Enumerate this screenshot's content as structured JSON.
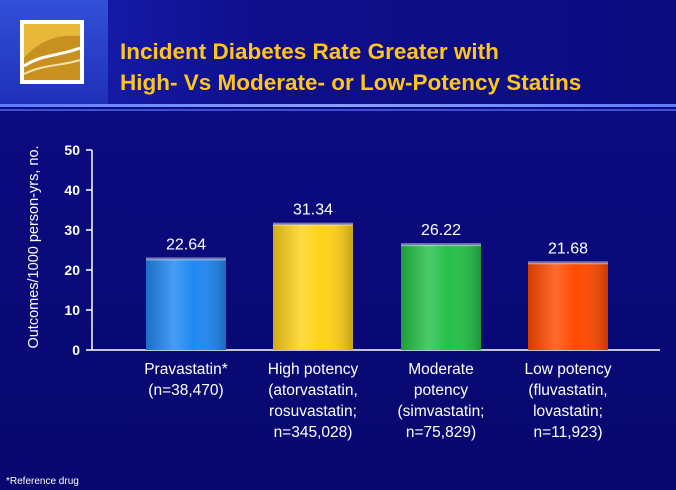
{
  "title": {
    "line1": "Incident Diabetes Rate Greater with",
    "line2": "High- Vs Moderate- or Low-Potency Statins"
  },
  "footnote": "*Reference drug",
  "colors": {
    "background": "#0a0a78",
    "title": "#ffc61a",
    "axis": "#ffffff"
  },
  "chart_data": {
    "type": "bar",
    "title": "",
    "xlabel": "",
    "ylabel": "Outcomes/1000 person-yrs, no.",
    "ylim": [
      0,
      50
    ],
    "yticks": [
      0,
      10,
      20,
      30,
      40,
      50
    ],
    "grid": false,
    "categories": [
      [
        "Pravastatin*",
        "(n=38,470)"
      ],
      [
        "High potency",
        "(atorvastatin,",
        "rosuvastatin;",
        "n=345,028)"
      ],
      [
        "Moderate",
        "potency",
        "(simvastatin;",
        "n=75,829)"
      ],
      [
        "Low potency",
        "(fluvastatin,",
        "lovastatin;",
        "n=11,923)"
      ]
    ],
    "values": [
      22.64,
      31.34,
      26.22,
      21.68
    ],
    "value_labels": [
      "22.64",
      "31.34",
      "26.22",
      "21.68"
    ],
    "bar_colors": [
      "#1f88f0",
      "#ffd21a",
      "#25c048",
      "#ff4a00"
    ]
  }
}
